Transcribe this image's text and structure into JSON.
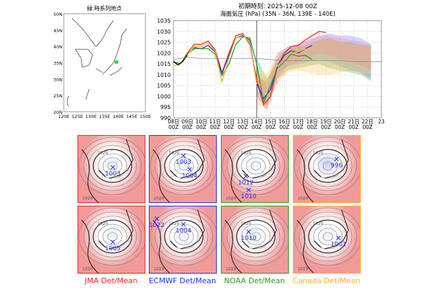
{
  "locator_map": {
    "title": "緑:時系列地点",
    "lat_labels": [
      "50N",
      "45N",
      "40N",
      "35N",
      "30N",
      "25N",
      "20N"
    ],
    "lon_labels": [
      "120E",
      "125E",
      "130E",
      "135E",
      "140E",
      "145E",
      "150E"
    ],
    "marker_color": "#33dd33"
  },
  "chart_data": {
    "type": "line",
    "title": "初期時刻: 2025-12-08 00Z",
    "subtitle": "海面気圧 (hPa)  (35N - 36N,  139E - 140E)",
    "ylim": [
      990,
      1035
    ],
    "yticks": [
      1035,
      1030,
      1025,
      1020,
      1015,
      1010,
      1005,
      1000,
      995,
      990
    ],
    "xticks": [
      "08日\n00Z",
      "09日\n00Z",
      "10日\n00Z",
      "11日\n00Z",
      "12日\n00Z",
      "13日\n00Z",
      "14日\n00Z",
      "15日\n00Z",
      "16日\n00Z",
      "17日\n00Z",
      "18日\n00Z",
      "19日\n00Z",
      "20日\n00Z",
      "21日\n00Z",
      "22日\n00Z",
      "23"
    ],
    "grid": true,
    "analysis_time_marker_day": 6,
    "series": [
      {
        "model": "JMA",
        "color": "#ff2020",
        "step_days": 0.5,
        "values": [
          1016,
          1015,
          1020,
          1024,
          1024,
          1025.5,
          1021.5,
          1011,
          1020,
          1028,
          1029,
          1024,
          1008,
          996,
          1000,
          1014,
          1020,
          1023,
          1023.5,
          1026,
          1028,
          1030,
          1029.5
        ]
      },
      {
        "model": "ECMWF",
        "color": "#2030ff",
        "step_days": 0.5,
        "values": [
          1016,
          1015,
          1019.5,
          1022.5,
          1022,
          1023.5,
          1020.5,
          1010.5,
          1019,
          1027,
          1028,
          1026,
          1006,
          999,
          1003,
          1014,
          1019,
          1021,
          1020,
          1022,
          1023.5
        ]
      },
      {
        "model": "NOAA",
        "color": "#20a020",
        "step_days": 0.5,
        "values": [
          1016,
          1015,
          1019.5,
          1022,
          1022,
          1022,
          1019.5,
          1009.5,
          1015,
          1024,
          1027.5,
          1027,
          1015,
          997,
          1005,
          1013,
          1016,
          1019.5,
          1018.5,
          1019,
          1017
        ]
      },
      {
        "model": "Canada",
        "color": "#ffb020",
        "step_days": 0.5,
        "values": [
          1014,
          1015,
          1019,
          1023,
          1023,
          1024.5,
          1021,
          1006.5,
          1018,
          1027,
          1028.5,
          1025,
          1006,
          1005,
          1010,
          1014,
          1017.5,
          1020,
          1020.5,
          1022,
          1021
        ]
      },
      {
        "model": "Observed",
        "color": "#000000",
        "step_days": 0.33,
        "values": [
          1016,
          1014.5,
          1016,
          1019
        ]
      },
      {
        "model": "Climatology",
        "color": "#888888",
        "step_days": 1,
        "values": [
          1017,
          1018,
          1017.5,
          1017.5,
          1017.5,
          1017.5,
          1017.5,
          1017,
          1016.5,
          1016.5,
          1016.5,
          1016.5,
          1016.5,
          1016,
          1016,
          1016
        ]
      }
    ],
    "spread": [
      {
        "model": "ECMWF",
        "color": "#8080ff",
        "start_day": 6,
        "lower": [
          1000,
          996,
          1010,
          1014,
          1015,
          1016,
          1017,
          1016,
          1014,
          1012,
          1011,
          1008
        ],
        "upper": [
          1010,
          1006,
          1020,
          1023,
          1024,
          1026,
          1028,
          1029,
          1028,
          1028,
          1027,
          1024
        ]
      },
      {
        "model": "NOAA",
        "color": "#60b060",
        "start_day": 6,
        "lower": [
          1004,
          995,
          1008,
          1012,
          1013,
          1014,
          1015,
          1013,
          1012,
          1011,
          1010,
          1007
        ],
        "upper": [
          1018,
          1008,
          1017,
          1022,
          1023,
          1024,
          1026,
          1027,
          1025,
          1025,
          1024,
          1023
        ]
      },
      {
        "model": "Canada",
        "color": "#ffc860",
        "start_day": 6,
        "lower": [
          996,
          995,
          1006,
          1011,
          1012,
          1011,
          1010,
          1010,
          1011,
          1012,
          1011,
          1010
        ],
        "upper": [
          1012,
          1010,
          1020,
          1022,
          1022,
          1024,
          1026,
          1026,
          1025,
          1024,
          1023,
          1022
        ]
      },
      {
        "model": "JMA",
        "color": "#ff9090",
        "start_day": 6,
        "lower": [
          1000,
          993,
          1008,
          1014,
          1016,
          1018,
          1020,
          1019,
          1017,
          1016,
          1014,
          1012
        ],
        "upper": [
          1012,
          1004,
          1018,
          1023,
          1024,
          1026,
          1028,
          1028,
          1027,
          1026,
          1025,
          1024
        ]
      }
    ]
  },
  "panels": [
    {
      "model": "JMA",
      "label": "JMA Det/Mean",
      "color": "#ff2020",
      "row1": {
        "lows": [
          "1003"
        ]
      },
      "row2": {
        "lows": [
          "1005"
        ]
      }
    },
    {
      "model": "ECMWF",
      "label": "ECMWF Det/Mean",
      "color": "#2030ff",
      "row1": {
        "lows": [
          "1003",
          "1004"
        ]
      },
      "row2": {
        "lows": [
          "1022",
          "1004"
        ]
      }
    },
    {
      "model": "NOAA",
      "label": "NOAA Det/Mean",
      "color": "#20a020",
      "row1": {
        "lows": [
          "1012",
          "1010"
        ]
      },
      "row2": {
        "lows": [
          "1010"
        ]
      }
    },
    {
      "model": "Canada",
      "label": "Canada Det/Mean",
      "color": "#ffb020",
      "row1": {
        "lows": [
          "996"
        ]
      },
      "row2": {
        "lows": [
          "1001"
        ]
      }
    }
  ],
  "contour_label": "1020"
}
